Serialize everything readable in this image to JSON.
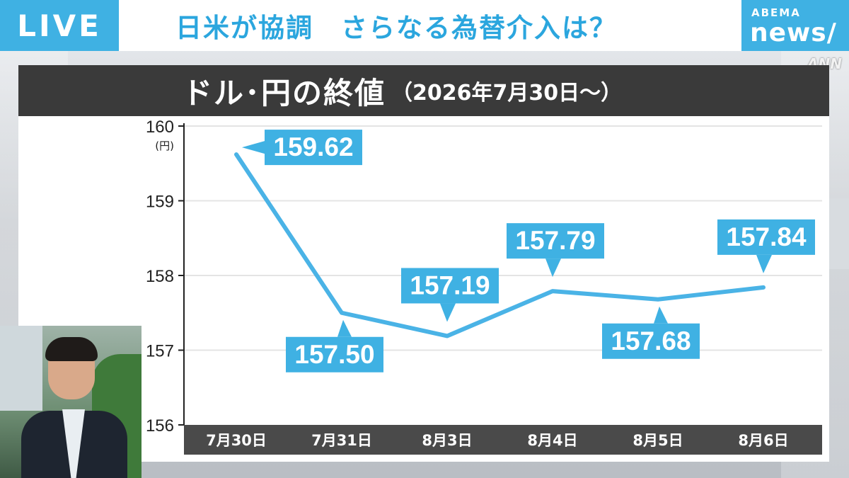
{
  "header": {
    "live_label": "LIVE",
    "headline": "日米が協調　さらなる為替介入は？",
    "brand_top": "ABEMA",
    "brand_bottom": "news/",
    "corner_mark": "ANN"
  },
  "chart_title": {
    "main": "ドル･円の終値",
    "sub": "（2026年7月30日～）"
  },
  "colors": {
    "accent": "#3fb1e3",
    "title_bar": "#3a3a3a",
    "axis_band": "#4a4a4a",
    "line": "#4ab3e6"
  },
  "chart_data": {
    "type": "line",
    "title": "ドル･円の終値（2026年7月30日～）",
    "ylabel_unit": "(円)",
    "ylim": [
      156,
      160
    ],
    "yticks": [
      160,
      159,
      158,
      157,
      156
    ],
    "grid": true,
    "categories": [
      "7月30日",
      "7月31日",
      "8月3日",
      "8月4日",
      "8月5日",
      "8月6日"
    ],
    "series": [
      {
        "values": [
          159.62,
          157.5,
          157.19,
          157.79,
          157.68,
          157.84
        ]
      }
    ],
    "data_labels": [
      "159.62",
      "157.50",
      "157.19",
      "157.79",
      "157.68",
      "157.84"
    ],
    "label_sides": [
      "above",
      "below",
      "above",
      "above",
      "below",
      "above"
    ]
  },
  "webcam": {
    "icon": "presenter-video-icon"
  }
}
